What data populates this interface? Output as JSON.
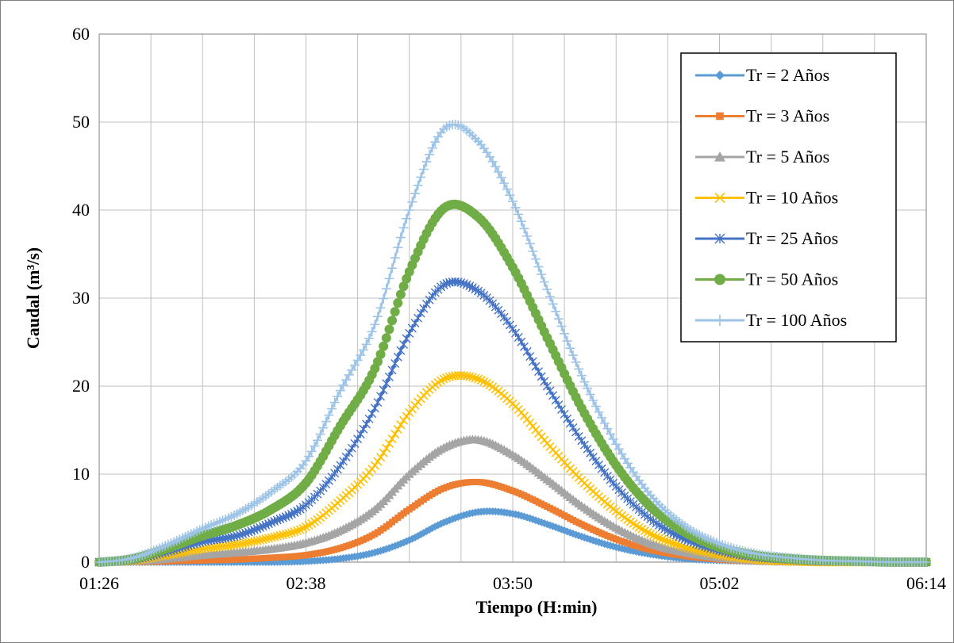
{
  "chart_data": {
    "type": "line",
    "title": "",
    "xlabel": "Tiempo (H:min)",
    "ylabel": "Caudal (m³/s)",
    "x_ticks": [
      "01:26",
      "02:38",
      "03:50",
      "05:02",
      "06:14"
    ],
    "xlim": [
      "01:26",
      "06:14"
    ],
    "ylim": [
      0,
      60
    ],
    "y_ticks": [
      0,
      10,
      20,
      30,
      40,
      50,
      60
    ],
    "grid": true,
    "legend_position": "top-right",
    "x": [
      "01:26",
      "01:38",
      "01:50",
      "02:02",
      "02:14",
      "02:26",
      "02:38",
      "02:50",
      "03:02",
      "03:14",
      "03:26",
      "03:38",
      "03:50",
      "04:02",
      "04:14",
      "04:26",
      "04:38",
      "04:50",
      "05:02",
      "05:14",
      "05:26",
      "05:38",
      "05:50",
      "06:02",
      "06:14"
    ],
    "series": [
      {
        "name": "Tr = 2 Años",
        "color": "#5b9bd5",
        "marker": "diamond",
        "values": [
          0,
          0,
          0,
          0,
          0,
          0,
          0.1,
          0.4,
          1.1,
          2.5,
          4.5,
          5.7,
          5.5,
          4.3,
          2.9,
          1.7,
          0.9,
          0.4,
          0.2,
          0.1,
          0,
          0,
          0,
          0,
          0
        ]
      },
      {
        "name": "Tr = 3 Años",
        "color": "#ed7d31",
        "marker": "square",
        "values": [
          0,
          0,
          0.1,
          0.2,
          0.3,
          0.5,
          0.8,
          1.6,
          3.2,
          6.0,
          8.4,
          9.1,
          8.1,
          6.3,
          4.3,
          2.6,
          1.4,
          0.7,
          0.3,
          0.1,
          0,
          0,
          0,
          0,
          0
        ]
      },
      {
        "name": "Tr = 5 Años",
        "color": "#a5a5a5",
        "marker": "triangle",
        "values": [
          0,
          0.1,
          0.4,
          0.8,
          1.1,
          1.5,
          2.2,
          3.6,
          6.0,
          10.0,
          13.0,
          13.9,
          12.2,
          9.4,
          6.4,
          3.9,
          2.1,
          1.1,
          0.5,
          0.2,
          0.1,
          0,
          0,
          0,
          0
        ]
      },
      {
        "name": "Tr = 10 Años",
        "color": "#ffc000",
        "marker": "x",
        "values": [
          0,
          0.2,
          0.8,
          1.5,
          2.0,
          2.8,
          4.0,
          7.0,
          11.0,
          17.0,
          20.8,
          20.8,
          18.0,
          13.5,
          9.3,
          5.8,
          3.2,
          1.7,
          0.8,
          0.3,
          0.1,
          0,
          0,
          0,
          0
        ]
      },
      {
        "name": "Tr = 25 Años",
        "color": "#4472c4",
        "marker": "asterisk",
        "values": [
          0,
          0.3,
          1.2,
          2.3,
          3.0,
          4.5,
          6.5,
          11.0,
          17.5,
          26.0,
          31.5,
          30.8,
          26.5,
          20.0,
          13.8,
          8.6,
          4.9,
          2.6,
          1.3,
          0.6,
          0.3,
          0.1,
          0.1,
          0,
          0
        ]
      },
      {
        "name": "Tr = 50 Años",
        "color": "#70ad47",
        "marker": "circle",
        "values": [
          0,
          0.4,
          1.6,
          3.0,
          4.2,
          6.0,
          9.0,
          15.5,
          22.0,
          33.0,
          40.2,
          39.2,
          33.5,
          25.5,
          17.5,
          11.0,
          6.3,
          3.4,
          1.7,
          0.8,
          0.4,
          0.2,
          0.1,
          0,
          0
        ]
      },
      {
        "name": "Tr = 100 Años",
        "color": "#9dc3e6",
        "marker": "plus",
        "values": [
          0,
          0.5,
          2.0,
          3.8,
          5.5,
          8.0,
          11.5,
          19.5,
          27.0,
          40.0,
          49.2,
          47.8,
          41.0,
          31.0,
          21.2,
          13.4,
          7.6,
          4.1,
          2.1,
          1.0,
          0.5,
          0.2,
          0.1,
          0,
          0
        ]
      }
    ]
  }
}
